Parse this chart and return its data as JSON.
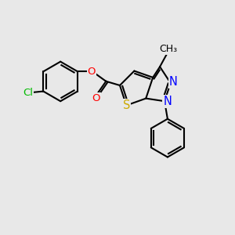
{
  "bg_color": "#e8e8e8",
  "bond_color": "#000000",
  "bond_width": 1.5,
  "atom_colors": {
    "Cl": "#00bb00",
    "O": "#ff0000",
    "S": "#ccaa00",
    "N": "#0000ff",
    "C": "#000000"
  },
  "font_size": 9.5,
  "xlim": [
    0,
    10
  ],
  "ylim": [
    0,
    10
  ]
}
